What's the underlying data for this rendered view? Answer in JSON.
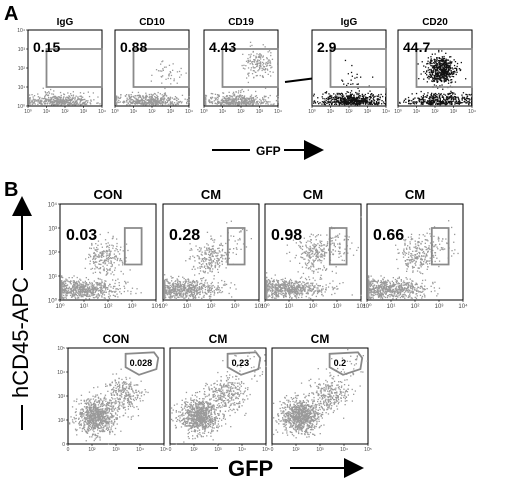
{
  "figure": {
    "panel_a_letter": "A",
    "panel_b_letter": "B",
    "a_axis_label": "GFP",
    "b_x_axis_label": "GFP",
    "b_y_axis_label": "hCD45-APC",
    "colors": {
      "gray_dots": "#9a9a9a",
      "black_dots": "#111111",
      "gate": "#8a8a8a",
      "axis": "#000000"
    }
  },
  "chart_data": [
    {
      "type": "scatter",
      "panel": "A",
      "title": "IgG",
      "gate_percent": "0.15",
      "xlim": [
        1,
        10000
      ],
      "ylim": [
        1,
        10000
      ],
      "scale": "log",
      "x_ticks": [
        "10⁰",
        "10¹",
        "10²",
        "10³",
        "10⁴"
      ],
      "y_ticks": [
        "10⁰",
        "10¹",
        "10²",
        "10³",
        "10⁴"
      ],
      "dot_color": "gray",
      "clusters": [
        {
          "x": 50,
          "y": 2,
          "n": 420
        }
      ],
      "gate": [
        [
          10,
          1000
        ],
        [
          10000,
          1000
        ],
        [
          10000,
          10
        ],
        [
          10,
          10
        ]
      ]
    },
    {
      "type": "scatter",
      "panel": "A",
      "title": "CD10",
      "gate_percent": "0.88",
      "xlim": [
        1,
        10000
      ],
      "ylim": [
        1,
        10000
      ],
      "scale": "log",
      "x_ticks": [
        "10⁰",
        "10¹",
        "10²",
        "10³",
        "10⁴"
      ],
      "y_ticks": [],
      "dot_color": "gray",
      "clusters": [
        {
          "x": 60,
          "y": 2,
          "n": 420
        },
        {
          "x": 800,
          "y": 60,
          "n": 40
        }
      ],
      "gate": [
        [
          10,
          1000
        ],
        [
          10000,
          1000
        ],
        [
          10000,
          10
        ],
        [
          10,
          10
        ]
      ]
    },
    {
      "type": "scatter",
      "panel": "A",
      "title": "CD19",
      "gate_percent": "4.43",
      "xlim": [
        1,
        10000
      ],
      "ylim": [
        1,
        10000
      ],
      "scale": "log",
      "x_ticks": [
        "10⁰",
        "10¹",
        "10²",
        "10³",
        "10⁴"
      ],
      "y_ticks": [],
      "dot_color": "gray",
      "clusters": [
        {
          "x": 60,
          "y": 2,
          "n": 420
        },
        {
          "x": 900,
          "y": 200,
          "n": 160
        }
      ],
      "gate": [
        [
          10,
          1000
        ],
        [
          10000,
          1000
        ],
        [
          10000,
          10
        ],
        [
          10,
          10
        ]
      ]
    },
    {
      "type": "scatter",
      "panel": "A",
      "title": "IgG",
      "gate_percent": "2.9",
      "xlim": [
        1,
        10000
      ],
      "ylim": [
        1,
        10000
      ],
      "scale": "log",
      "x_ticks": [
        "10⁰",
        "10¹",
        "10²",
        "10³",
        "10⁴"
      ],
      "y_ticks": [],
      "dot_color": "black",
      "clusters": [
        {
          "x": 150,
          "y": 2,
          "n": 520
        },
        {
          "x": 120,
          "y": 30,
          "n": 25
        }
      ],
      "gate": [
        [
          10,
          1000
        ],
        [
          10000,
          1000
        ],
        [
          10000,
          10
        ],
        [
          10,
          10
        ]
      ]
    },
    {
      "type": "scatter",
      "panel": "A",
      "title": "CD20",
      "gate_percent": "44.7",
      "xlim": [
        1,
        10000
      ],
      "ylim": [
        1,
        10000
      ],
      "scale": "log",
      "x_ticks": [
        "10⁰",
        "10¹",
        "10²",
        "10³",
        "10⁴"
      ],
      "y_ticks": [],
      "dot_color": "black",
      "clusters": [
        {
          "x": 200,
          "y": 2,
          "n": 380
        },
        {
          "x": 200,
          "y": 80,
          "n": 520
        }
      ],
      "gate": [
        [
          10,
          1000
        ],
        [
          10000,
          1000
        ],
        [
          10000,
          10
        ],
        [
          10,
          10
        ]
      ]
    },
    {
      "type": "scatter",
      "panel": "B",
      "title": "CON",
      "gate_percent": "0.03",
      "xlim": [
        1,
        10000
      ],
      "ylim": [
        1,
        10000
      ],
      "scale": "log",
      "x_ticks": [
        "10⁰",
        "10¹",
        "10²",
        "10³",
        "10⁴"
      ],
      "y_ticks": [
        "10⁰",
        "10¹",
        "10²",
        "10³",
        "10⁴"
      ],
      "dot_color": "gray",
      "clusters": [
        {
          "x": 5,
          "y": 3,
          "n": 700
        },
        {
          "x": 80,
          "y": 60,
          "n": 220
        }
      ],
      "gate": [
        [
          500,
          1000
        ],
        [
          2500,
          1000
        ],
        [
          2500,
          30
        ],
        [
          500,
          30
        ]
      ]
    },
    {
      "type": "scatter",
      "panel": "B",
      "title": "CM",
      "gate_percent": "0.28",
      "xlim": [
        1,
        10000
      ],
      "ylim": [
        1,
        10000
      ],
      "scale": "log",
      "x_ticks": [
        "10⁰",
        "10¹",
        "10²",
        "10³",
        "10⁴"
      ],
      "y_ticks": [],
      "dot_color": "gray",
      "clusters": [
        {
          "x": 5,
          "y": 3,
          "n": 700
        },
        {
          "x": 80,
          "y": 60,
          "n": 220
        },
        {
          "x": 900,
          "y": 300,
          "n": 30
        }
      ],
      "gate": [
        [
          500,
          1000
        ],
        [
          2500,
          1000
        ],
        [
          2500,
          30
        ],
        [
          500,
          30
        ]
      ]
    },
    {
      "type": "scatter",
      "panel": "B",
      "title": "CM",
      "gate_percent": "0.98",
      "xlim": [
        1,
        10000
      ],
      "ylim": [
        1,
        10000
      ],
      "scale": "log",
      "x_ticks": [
        "10⁰",
        "10¹",
        "10²",
        "10³",
        "10⁴"
      ],
      "y_ticks": [],
      "dot_color": "gray",
      "clusters": [
        {
          "x": 5,
          "y": 3,
          "n": 700
        },
        {
          "x": 100,
          "y": 80,
          "n": 220
        },
        {
          "x": 900,
          "y": 250,
          "n": 70
        }
      ],
      "gate": [
        [
          500,
          1000
        ],
        [
          2500,
          1000
        ],
        [
          2500,
          30
        ],
        [
          500,
          30
        ]
      ]
    },
    {
      "type": "scatter",
      "panel": "B",
      "title": "CM",
      "gate_percent": "0.66",
      "xlim": [
        1,
        10000
      ],
      "ylim": [
        1,
        10000
      ],
      "scale": "log",
      "x_ticks": [
        "10⁰",
        "10¹",
        "10²",
        "10³",
        "10⁴"
      ],
      "y_ticks": [],
      "dot_color": "gray",
      "clusters": [
        {
          "x": 5,
          "y": 3,
          "n": 700
        },
        {
          "x": 100,
          "y": 80,
          "n": 220
        },
        {
          "x": 900,
          "y": 250,
          "n": 50
        }
      ],
      "gate": [
        [
          500,
          1000
        ],
        [
          2500,
          1000
        ],
        [
          2500,
          30
        ],
        [
          500,
          30
        ]
      ]
    },
    {
      "type": "scatter",
      "panel": "B",
      "title": "CON",
      "gate_percent": "0.028",
      "xlim": [
        -100,
        100000
      ],
      "ylim": [
        -100,
        100000
      ],
      "scale": "biexponential",
      "x_ticks": [
        "0",
        "10²",
        "10³",
        "10⁴",
        "10⁵"
      ],
      "y_ticks": [
        "0",
        "10²",
        "10³",
        "10⁴",
        "10⁵"
      ],
      "dot_color": "gray",
      "clusters": [
        {
          "x": 30,
          "y": 30,
          "n": 800
        },
        {
          "x": 800,
          "y": 400,
          "n": 260
        }
      ],
      "gate": [
        [
          1000,
          50000
        ],
        [
          30000,
          60000
        ],
        [
          50000,
          30000
        ],
        [
          40000,
          8000
        ],
        [
          5000,
          4000
        ],
        [
          1000,
          10000
        ]
      ]
    },
    {
      "type": "scatter",
      "panel": "B",
      "title": "CM",
      "gate_percent": "0.23",
      "xlim": [
        -100,
        100000
      ],
      "ylim": [
        -100,
        100000
      ],
      "scale": "biexponential",
      "x_ticks": [
        "0",
        "10²",
        "10³",
        "10⁴",
        "10⁵"
      ],
      "y_ticks": [],
      "dot_color": "gray",
      "clusters": [
        {
          "x": 30,
          "y": 30,
          "n": 800
        },
        {
          "x": 800,
          "y": 400,
          "n": 260
        },
        {
          "x": 12000,
          "y": 12000,
          "n": 40
        }
      ],
      "gate": [
        [
          1000,
          50000
        ],
        [
          30000,
          60000
        ],
        [
          50000,
          30000
        ],
        [
          40000,
          8000
        ],
        [
          5000,
          4000
        ],
        [
          1000,
          10000
        ]
      ]
    },
    {
      "type": "scatter",
      "panel": "B",
      "title": "CM",
      "gate_percent": "0.2",
      "xlim": [
        -100,
        100000
      ],
      "ylim": [
        -100,
        100000
      ],
      "scale": "biexponential",
      "x_ticks": [
        "0",
        "10²",
        "10³",
        "10⁴",
        "10⁵"
      ],
      "y_ticks": [],
      "dot_color": "gray",
      "clusters": [
        {
          "x": 30,
          "y": 30,
          "n": 800
        },
        {
          "x": 800,
          "y": 400,
          "n": 260
        },
        {
          "x": 12000,
          "y": 12000,
          "n": 35
        }
      ],
      "gate": [
        [
          1000,
          50000
        ],
        [
          30000,
          60000
        ],
        [
          50000,
          30000
        ],
        [
          40000,
          8000
        ],
        [
          5000,
          4000
        ],
        [
          1000,
          10000
        ]
      ]
    }
  ]
}
